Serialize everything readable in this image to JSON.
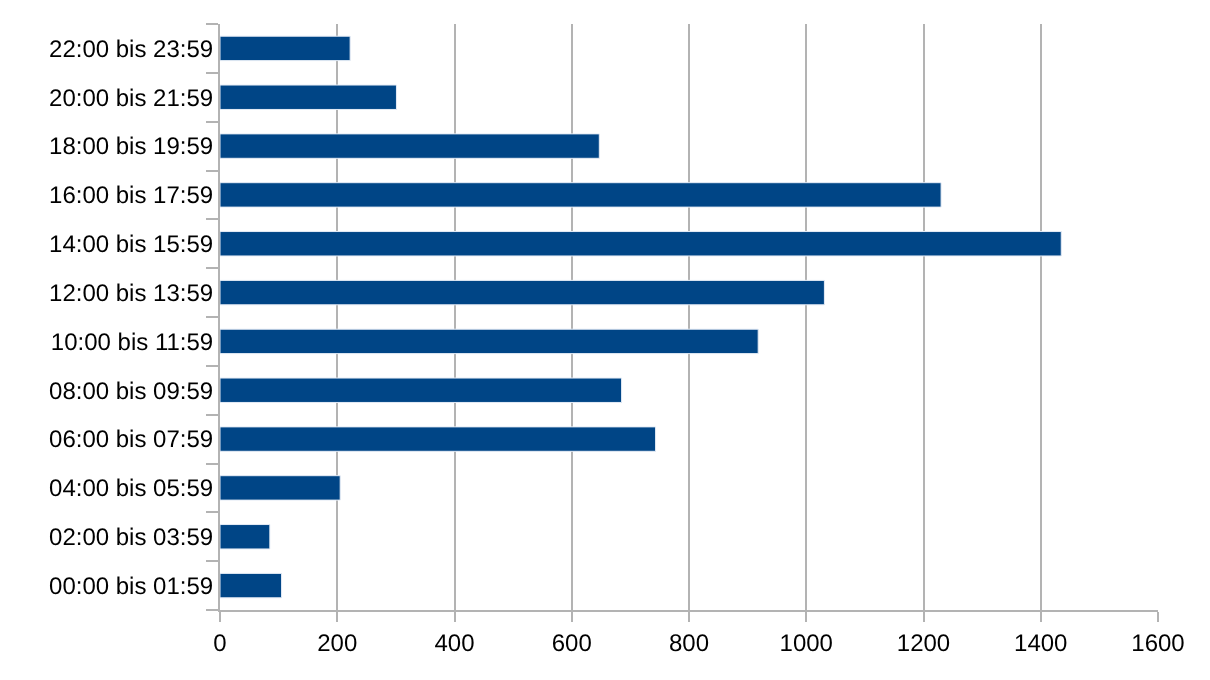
{
  "chart_data": {
    "type": "bar",
    "orientation": "horizontal",
    "categories": [
      "22:00 bis 23:59",
      "20:00 bis 21:59",
      "18:00 bis 19:59",
      "16:00 bis 17:59",
      "14:00 bis 15:59",
      "12:00 bis 13:59",
      "10:00 bis 11:59",
      "08:00 bis 09:59",
      "06:00 bis 07:59",
      "04:00 bis 05:59",
      "02:00 bis 03:59",
      "00:00 bis 01:59"
    ],
    "values": [
      222,
      301,
      647,
      1230,
      1435,
      1031,
      918,
      685,
      743,
      205,
      85,
      105
    ],
    "color": "#004586",
    "xlim": [
      0,
      1600
    ],
    "xticks": [
      0,
      200,
      400,
      600,
      800,
      1000,
      1200,
      1400,
      1600
    ],
    "grid": "x",
    "legend": false
  }
}
